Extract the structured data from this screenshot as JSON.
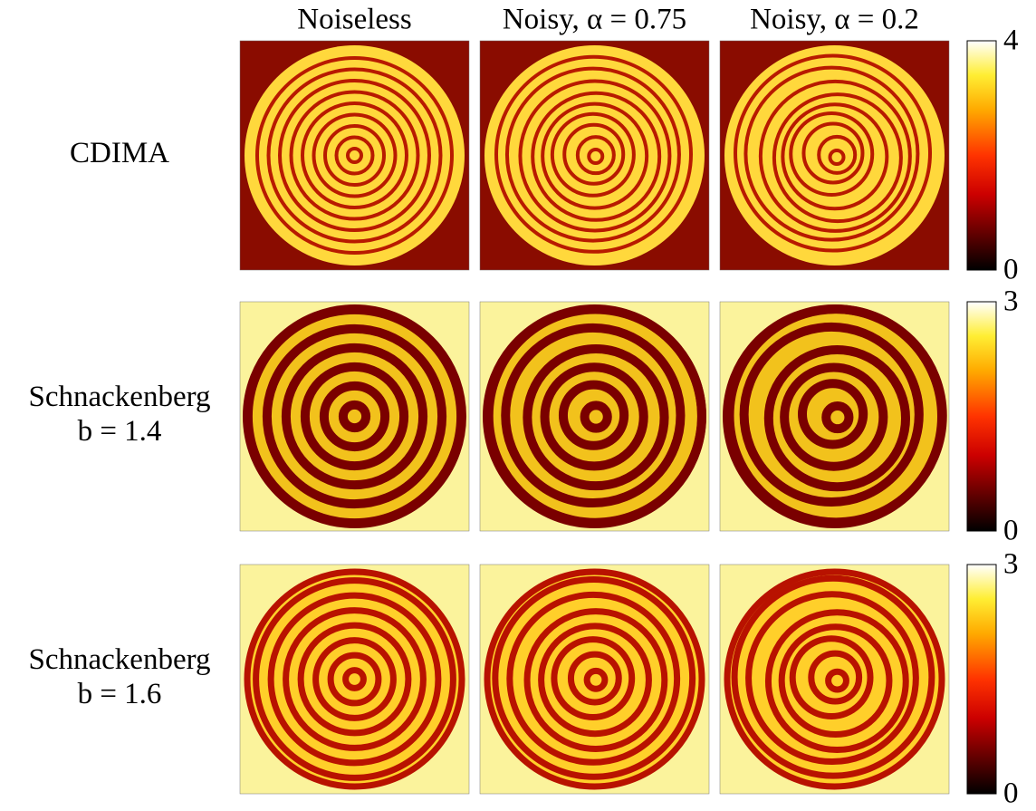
{
  "column_headers": [
    "Noiseless",
    "Noisy, α = 0.75",
    "Noisy, α = 0.2"
  ],
  "rows": [
    {
      "label": [
        "CDIMA"
      ],
      "colorbar": {
        "max": 4,
        "min": 0
      }
    },
    {
      "label": [
        "Schnackenberg",
        "b = 1.4"
      ],
      "colorbar": {
        "max": 3,
        "min": 0
      }
    },
    {
      "label": [
        "Schnackenberg",
        "b = 1.6"
      ],
      "colorbar": {
        "max": 3,
        "min": 0
      }
    }
  ]
}
